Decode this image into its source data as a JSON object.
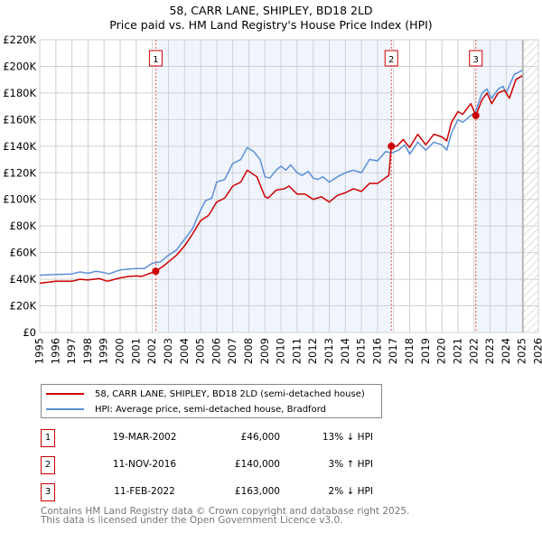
{
  "chart_data": {
    "type": "line",
    "title": "58, CARR LANE, SHIPLEY, BD18 2LD",
    "subtitle": "Price paid vs. HM Land Registry's House Price Index (HPI)",
    "xlim": [
      1995,
      2026
    ],
    "ylim": [
      0,
      220000
    ],
    "y_ticks": [
      "£0",
      "£20K",
      "£40K",
      "£60K",
      "£80K",
      "£100K",
      "£120K",
      "£140K",
      "£160K",
      "£180K",
      "£200K",
      "£220K"
    ],
    "x_ticks": [
      "1995",
      "1996",
      "1997",
      "1998",
      "1999",
      "2000",
      "2001",
      "2002",
      "2003",
      "2004",
      "2005",
      "2006",
      "2007",
      "2008",
      "2009",
      "2010",
      "2011",
      "2012",
      "2013",
      "2014",
      "2015",
      "2016",
      "2017",
      "2018",
      "2019",
      "2020",
      "2021",
      "2022",
      "2023",
      "2024",
      "2025",
      "2026"
    ],
    "grid": true,
    "series": [
      {
        "name": "58, CARR LANE, SHIPLEY, BD18 2LD (semi-detached house)",
        "color": "#cc0000",
        "x": [
          1995,
          1996,
          1997,
          1997.5,
          1998,
          1998.7,
          1999.2,
          2000,
          2000.5,
          2001,
          2001.3,
          2002.21,
          2002.7,
          2003,
          2003.5,
          2004,
          2004.5,
          2005,
          2005.5,
          2006,
          2006.5,
          2007,
          2007.5,
          2007.9,
          2008.5,
          2009,
          2009.2,
          2009.7,
          2010.2,
          2010.5,
          2011,
          2011.5,
          2012,
          2012.5,
          2013,
          2013.5,
          2014,
          2014.5,
          2015,
          2015.5,
          2016,
          2016.7,
          2016.86,
          2017.2,
          2017.6,
          2018,
          2018.5,
          2019,
          2019.5,
          2020,
          2020.3,
          2020.6,
          2021,
          2021.3,
          2021.8,
          2022.11,
          2022.5,
          2022.8,
          2023.1,
          2023.5,
          2023.9,
          2024.2,
          2024.6,
          2025
        ],
        "y": [
          37000,
          38500,
          38500,
          40000,
          39500,
          40500,
          38500,
          41000,
          42000,
          42500,
          42000,
          46000,
          50000,
          53000,
          58000,
          65000,
          74000,
          84000,
          88000,
          98000,
          101000,
          110000,
          113000,
          122000,
          117000,
          102000,
          101000,
          107000,
          108000,
          110000,
          104000,
          104000,
          100000,
          102000,
          98000,
          103000,
          105000,
          108000,
          106000,
          112000,
          112000,
          118000,
          140000,
          140000,
          145000,
          139000,
          149000,
          141000,
          149000,
          147000,
          144000,
          158000,
          166000,
          164000,
          172000,
          163000,
          175000,
          180000,
          172000,
          180000,
          182000,
          176000,
          190000,
          193000
        ]
      },
      {
        "name": "HPI: Average price, semi-detached house, Bradford",
        "color": "#5b8fd6",
        "x": [
          1995,
          1996,
          1997,
          1997.5,
          1998,
          1998.5,
          1999,
          1999.3,
          2000,
          2000.5,
          2001,
          2001.5,
          2002,
          2002.5,
          2003,
          2003.5,
          2004,
          2004.5,
          2005,
          2005.3,
          2005.7,
          2006,
          2006.5,
          2007,
          2007.5,
          2007.9,
          2008.3,
          2008.7,
          2009,
          2009.3,
          2009.7,
          2010,
          2010.3,
          2010.6,
          2011,
          2011.3,
          2011.7,
          2012,
          2012.3,
          2012.6,
          2013,
          2013.5,
          2014,
          2014.5,
          2015,
          2015.5,
          2016,
          2016.5,
          2016.9,
          2017.3,
          2017.7,
          2018,
          2018.5,
          2019,
          2019.5,
          2020,
          2020.3,
          2020.6,
          2021,
          2021.3,
          2021.7,
          2022.1,
          2022.5,
          2022.8,
          2023.1,
          2023.5,
          2023.8,
          2024,
          2024.5,
          2025
        ],
        "y": [
          43000,
          43500,
          44000,
          45500,
          44500,
          46000,
          45000,
          44000,
          47000,
          47500,
          48000,
          48000,
          52000,
          53000,
          58000,
          62000,
          70000,
          78000,
          92000,
          99000,
          101000,
          113000,
          115000,
          127000,
          130000,
          139000,
          136000,
          130000,
          117000,
          116000,
          122000,
          125000,
          122000,
          126000,
          120000,
          118000,
          121000,
          116000,
          115000,
          117000,
          113000,
          117000,
          120000,
          122000,
          120000,
          130000,
          129000,
          136000,
          135000,
          137000,
          141000,
          134000,
          143000,
          137000,
          143000,
          141000,
          137000,
          150000,
          160000,
          158000,
          162000,
          166000,
          180000,
          183000,
          176000,
          183000,
          185000,
          180000,
          194000,
          197000
        ]
      }
    ],
    "transactions": [
      {
        "label": "1",
        "x": 2002.21,
        "y": 46000,
        "date": "19-MAR-2002",
        "price": "£46,000",
        "hpi": "13% ↓ HPI"
      },
      {
        "label": "2",
        "x": 2016.86,
        "y": 140000,
        "date": "11-NOV-2016",
        "price": "£140,000",
        "hpi": "3% ↑ HPI"
      },
      {
        "label": "3",
        "x": 2022.11,
        "y": 163000,
        "date": "11-FEB-2022",
        "price": "£163,000",
        "hpi": "2% ↓ HPI"
      }
    ],
    "data_end": 2025.05,
    "legend_placement": "bottom"
  },
  "footer": [
    "Contains HM Land Registry data © Crown copyright and database right 2025.",
    "This data is licensed under the Open Government Licence v3.0."
  ]
}
